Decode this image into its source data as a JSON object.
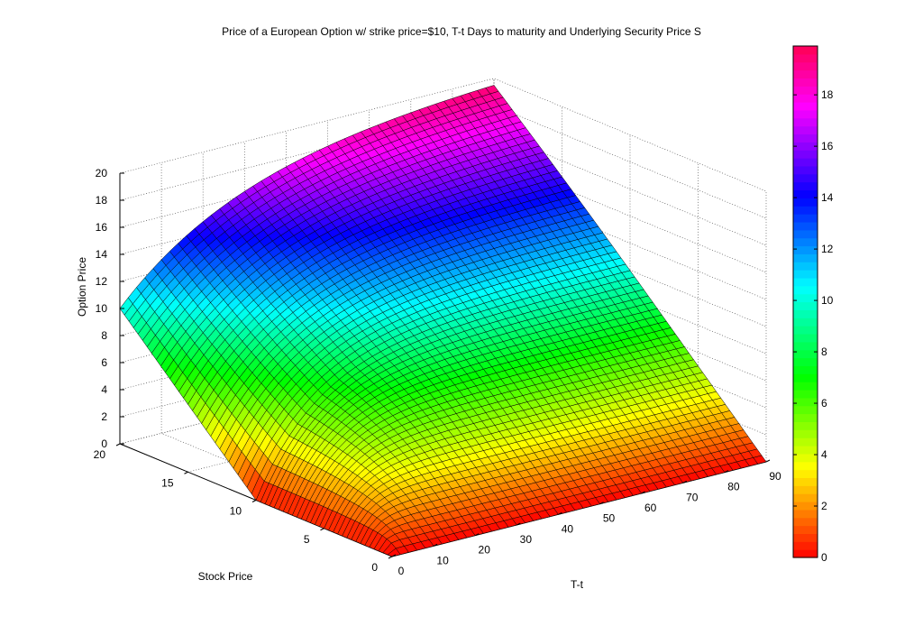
{
  "chart_data": {
    "type": "surface",
    "title": "Price of a European Option w/ strike price=$10, T-t Days to maturity and Underlying Security Price S",
    "xlabel": "T-t",
    "ylabel": "Stock Price",
    "zlabel": "Option Price",
    "strike": 10,
    "x_range": [
      0,
      90
    ],
    "y_range": [
      0,
      20
    ],
    "z_range": [
      0,
      20
    ],
    "x_ticks": [
      "0",
      "10",
      "20",
      "30",
      "40",
      "50",
      "60",
      "70",
      "80",
      "90"
    ],
    "y_ticks": [
      "0",
      "5",
      "10",
      "15",
      "20"
    ],
    "z_ticks": [
      "0",
      "2",
      "4",
      "6",
      "8",
      "10",
      "12",
      "14",
      "16",
      "18",
      "20"
    ],
    "colorbar_ticks": [
      "0",
      "2",
      "4",
      "6",
      "8",
      "10",
      "12",
      "14",
      "16",
      "18"
    ],
    "colormap": "hsv",
    "grid": true,
    "corner_values": [
      {
        "T-t": 0,
        "S": 0,
        "price": 0
      },
      {
        "T-t": 0,
        "S": 10,
        "price": 0
      },
      {
        "T-t": 0,
        "S": 20,
        "price": 10
      },
      {
        "T-t": 90,
        "S": 0,
        "price": 0
      },
      {
        "T-t": 90,
        "S": 10,
        "price": 10
      },
      {
        "T-t": 90,
        "S": 20,
        "price": 20
      }
    ]
  }
}
